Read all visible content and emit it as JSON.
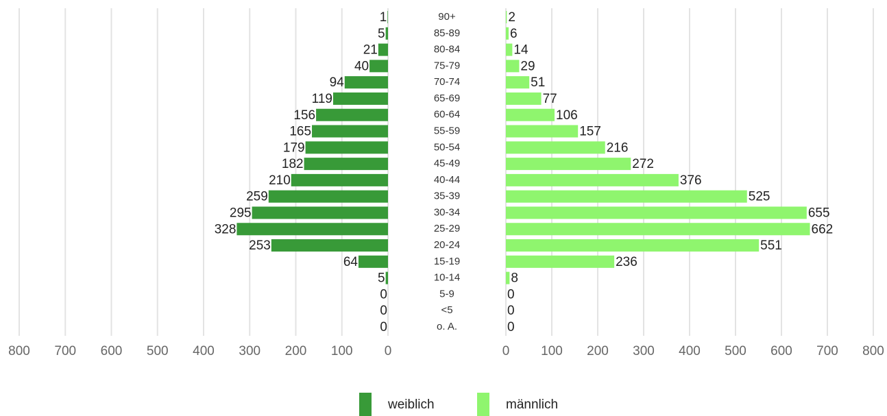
{
  "chart_data": {
    "type": "bar",
    "categories": [
      "90+",
      "85-89",
      "80-84",
      "75-79",
      "70-74",
      "65-69",
      "60-64",
      "55-59",
      "50-54",
      "45-49",
      "40-44",
      "35-39",
      "30-34",
      "25-29",
      "20-24",
      "15-19",
      "10-14",
      "5-9",
      "<5",
      "o. A."
    ],
    "series": [
      {
        "name": "weiblich",
        "color": "#389a38",
        "side": "left",
        "values": [
          1,
          5,
          21,
          40,
          94,
          119,
          156,
          165,
          179,
          182,
          210,
          259,
          295,
          328,
          253,
          64,
          5,
          0,
          0,
          0
        ]
      },
      {
        "name": "männlich",
        "color": "#8ff56e",
        "side": "right",
        "values": [
          2,
          6,
          14,
          29,
          51,
          77,
          106,
          157,
          216,
          272,
          376,
          525,
          655,
          662,
          551,
          236,
          8,
          0,
          0,
          0
        ]
      }
    ],
    "xlim": [
      0,
      800
    ],
    "xticks": [
      0,
      100,
      200,
      300,
      400,
      500,
      600,
      700,
      800
    ],
    "grid": true
  }
}
